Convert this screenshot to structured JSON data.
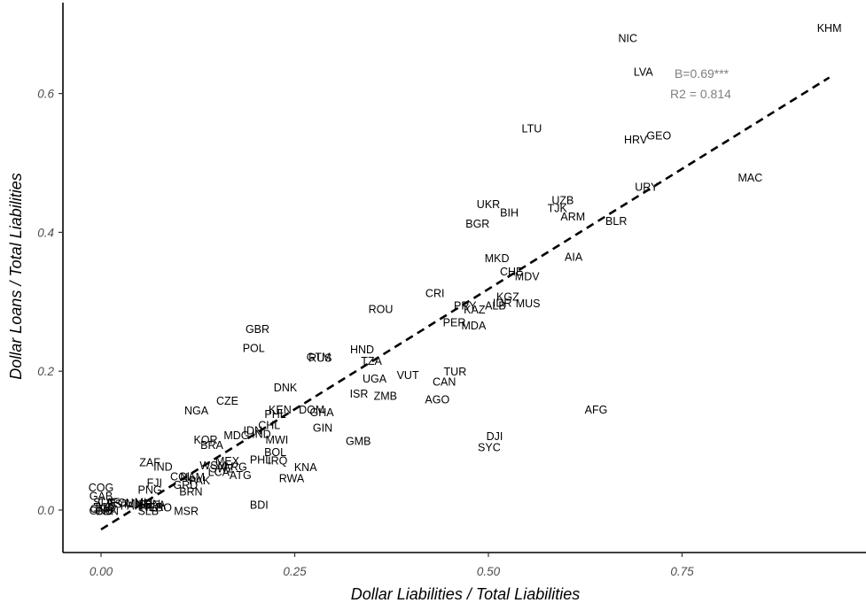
{
  "chart_data": {
    "type": "scatter",
    "xlabel": "Dollar Liabilities / Total Liabilities",
    "ylabel": "Dollar Loans / Total Liabilities",
    "xlim": [
      -0.12,
      1.0
    ],
    "ylim": [
      -0.065,
      0.73
    ],
    "xticks": [
      0.0,
      0.25,
      0.5,
      0.75
    ],
    "xtick_labels": [
      "0.00",
      "0.25",
      "0.50",
      "0.75"
    ],
    "yticks": [
      0.0,
      0.2,
      0.4,
      0.6
    ],
    "ytick_labels": [
      "0.0",
      "0.2",
      "0.4",
      "0.6"
    ],
    "grid": false,
    "annotations": [
      "B=0.69***",
      "R2 = 0.814"
    ],
    "fit_line": {
      "x": [
        0.0,
        0.94
      ],
      "y": [
        -0.028,
        0.623
      ],
      "style": "dashed"
    },
    "points": [
      {
        "label": "KHM",
        "x": 0.94,
        "y": 0.694
      },
      {
        "label": "NIC",
        "x": 0.68,
        "y": 0.679
      },
      {
        "label": "LVA",
        "x": 0.7,
        "y": 0.631
      },
      {
        "label": "GEO",
        "x": 0.72,
        "y": 0.539
      },
      {
        "label": "HRV",
        "x": 0.69,
        "y": 0.533
      },
      {
        "label": "LTU",
        "x": 0.556,
        "y": 0.549
      },
      {
        "label": "MAC",
        "x": 0.838,
        "y": 0.478
      },
      {
        "label": "URY",
        "x": 0.704,
        "y": 0.465
      },
      {
        "label": "UZB",
        "x": 0.596,
        "y": 0.446
      },
      {
        "label": "UKR",
        "x": 0.5,
        "y": 0.44
      },
      {
        "label": "TJK",
        "x": 0.589,
        "y": 0.434
      },
      {
        "label": "BIH",
        "x": 0.527,
        "y": 0.428
      },
      {
        "label": "ARM",
        "x": 0.609,
        "y": 0.422
      },
      {
        "label": "BLR",
        "x": 0.665,
        "y": 0.416
      },
      {
        "label": "BGR",
        "x": 0.486,
        "y": 0.412
      },
      {
        "label": "AIA",
        "x": 0.61,
        "y": 0.364
      },
      {
        "label": "MKD",
        "x": 0.511,
        "y": 0.362
      },
      {
        "label": "CHE",
        "x": 0.53,
        "y": 0.343
      },
      {
        "label": "MDV",
        "x": 0.55,
        "y": 0.336
      },
      {
        "label": "CRI",
        "x": 0.431,
        "y": 0.312
      },
      {
        "label": "KGZ",
        "x": 0.525,
        "y": 0.307
      },
      {
        "label": "IDR",
        "x": 0.518,
        "y": 0.298
      },
      {
        "label": "MUS",
        "x": 0.551,
        "y": 0.297
      },
      {
        "label": "ALB",
        "x": 0.509,
        "y": 0.294
      },
      {
        "label": "PRY",
        "x": 0.47,
        "y": 0.294
      },
      {
        "label": "KAZ",
        "x": 0.482,
        "y": 0.288
      },
      {
        "label": "ROU",
        "x": 0.361,
        "y": 0.289
      },
      {
        "label": "PER",
        "x": 0.456,
        "y": 0.27
      },
      {
        "label": "MDA",
        "x": 0.481,
        "y": 0.265
      },
      {
        "label": "GBR",
        "x": 0.202,
        "y": 0.26
      },
      {
        "label": "POL",
        "x": 0.197,
        "y": 0.233
      },
      {
        "label": "HND",
        "x": 0.337,
        "y": 0.231
      },
      {
        "label": "GTM",
        "x": 0.281,
        "y": 0.22
      },
      {
        "label": "RUS",
        "x": 0.283,
        "y": 0.219
      },
      {
        "label": "TZA",
        "x": 0.349,
        "y": 0.214
      },
      {
        "label": "TUR",
        "x": 0.457,
        "y": 0.199
      },
      {
        "label": "VUT",
        "x": 0.396,
        "y": 0.194
      },
      {
        "label": "UGA",
        "x": 0.353,
        "y": 0.189
      },
      {
        "label": "CAN",
        "x": 0.443,
        "y": 0.184
      },
      {
        "label": "DNK",
        "x": 0.238,
        "y": 0.176
      },
      {
        "label": "ISR",
        "x": 0.333,
        "y": 0.167
      },
      {
        "label": "ZMB",
        "x": 0.367,
        "y": 0.164
      },
      {
        "label": "AGO",
        "x": 0.434,
        "y": 0.159
      },
      {
        "label": "CZE",
        "x": 0.163,
        "y": 0.157
      },
      {
        "label": "AFG",
        "x": 0.639,
        "y": 0.144
      },
      {
        "label": "NGA",
        "x": 0.123,
        "y": 0.143
      },
      {
        "label": "KEN",
        "x": 0.231,
        "y": 0.144
      },
      {
        "label": "DOM",
        "x": 0.272,
        "y": 0.144
      },
      {
        "label": "GHA",
        "x": 0.285,
        "y": 0.14
      },
      {
        "label": "PHL",
        "x": 0.225,
        "y": 0.138
      },
      {
        "label": "CHL",
        "x": 0.217,
        "y": 0.122
      },
      {
        "label": "GIN",
        "x": 0.286,
        "y": 0.118
      },
      {
        "label": "IDN",
        "x": 0.196,
        "y": 0.114
      },
      {
        "label": "MDG",
        "x": 0.175,
        "y": 0.107
      },
      {
        "label": "IND",
        "x": 0.207,
        "y": 0.109
      },
      {
        "label": "MWI",
        "x": 0.227,
        "y": 0.101
      },
      {
        "label": "DJI",
        "x": 0.508,
        "y": 0.106
      },
      {
        "label": "GMB",
        "x": 0.332,
        "y": 0.099
      },
      {
        "label": "KOR",
        "x": 0.135,
        "y": 0.101
      },
      {
        "label": "BRA",
        "x": 0.143,
        "y": 0.093
      },
      {
        "label": "SYC",
        "x": 0.501,
        "y": 0.09
      },
      {
        "label": "BOL",
        "x": 0.225,
        "y": 0.083
      },
      {
        "label": "PHL",
        "x": 0.206,
        "y": 0.072
      },
      {
        "label": "IRQ",
        "x": 0.228,
        "y": 0.071
      },
      {
        "label": "MEX",
        "x": 0.163,
        "y": 0.07
      },
      {
        "label": "ZAF",
        "x": 0.063,
        "y": 0.068
      },
      {
        "label": "WSM",
        "x": 0.145,
        "y": 0.064
      },
      {
        "label": "ARG",
        "x": 0.173,
        "y": 0.062
      },
      {
        "label": "SWZ",
        "x": 0.156,
        "y": 0.059
      },
      {
        "label": "KNA",
        "x": 0.264,
        "y": 0.061
      },
      {
        "label": "IND",
        "x": 0.08,
        "y": 0.062
      },
      {
        "label": "LCA",
        "x": 0.152,
        "y": 0.054
      },
      {
        "label": "ATG",
        "x": 0.18,
        "y": 0.05
      },
      {
        "label": "COL",
        "x": 0.104,
        "y": 0.048
      },
      {
        "label": "NAM",
        "x": 0.118,
        "y": 0.047
      },
      {
        "label": "RWA",
        "x": 0.246,
        "y": 0.045
      },
      {
        "label": "PAK",
        "x": 0.127,
        "y": 0.042
      },
      {
        "label": "FJI",
        "x": 0.069,
        "y": 0.039
      },
      {
        "label": "GRD",
        "x": 0.109,
        "y": 0.036
      },
      {
        "label": "COG",
        "x": 0.0,
        "y": 0.032
      },
      {
        "label": "PNG",
        "x": 0.063,
        "y": 0.029
      },
      {
        "label": "BRN",
        "x": 0.116,
        "y": 0.026
      },
      {
        "label": "GAB",
        "x": 0.0,
        "y": 0.02
      },
      {
        "label": "SLV",
        "x": 0.003,
        "y": 0.011
      },
      {
        "label": "CAF",
        "x": 0.01,
        "y": 0.011
      },
      {
        "label": "TCD",
        "x": 0.005,
        "y": 0.004
      },
      {
        "label": "EST",
        "x": 0.022,
        "y": 0.008
      },
      {
        "label": "ECU",
        "x": 0.027,
        "y": 0.01
      },
      {
        "label": "PAN",
        "x": 0.039,
        "y": 0.006
      },
      {
        "label": "MNE",
        "x": 0.048,
        "y": 0.009
      },
      {
        "label": "MLI",
        "x": 0.055,
        "y": 0.011
      },
      {
        "label": "SEN",
        "x": 0.062,
        "y": 0.008
      },
      {
        "label": "NER",
        "x": 0.066,
        "y": 0.004
      },
      {
        "label": "BFA",
        "x": 0.07,
        "y": 0.007
      },
      {
        "label": "TGO",
        "x": 0.076,
        "y": 0.003
      },
      {
        "label": "BDI",
        "x": 0.204,
        "y": 0.007
      },
      {
        "label": "GNB",
        "x": 0.0,
        "y": -0.001
      },
      {
        "label": "CIV",
        "x": 0.004,
        "y": -0.002
      },
      {
        "label": "CMR",
        "x": 0.002,
        "y": 0.001
      },
      {
        "label": "BEN",
        "x": 0.008,
        "y": -0.002
      },
      {
        "label": "SLB",
        "x": 0.061,
        "y": -0.002
      },
      {
        "label": "MSR",
        "x": 0.11,
        "y": -0.002
      }
    ]
  }
}
